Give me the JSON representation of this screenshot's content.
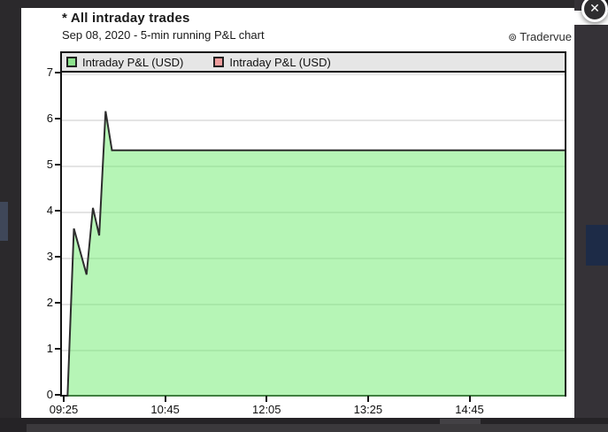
{
  "window": {
    "close_label": "✕"
  },
  "header": {
    "title": "* All intraday trades",
    "subtitle": "Sep 08, 2020 - 5-min running P&L chart",
    "brand_icon": "⊚",
    "brand": "Tradervue"
  },
  "chart_data": {
    "type": "area",
    "title": "* All intraday trades",
    "subtitle": "Sep 08, 2020 - 5-min running P&L chart",
    "legend_position": "top",
    "grid": true,
    "grid_color": "#c8c8c8",
    "xlim": [
      "09:25",
      "16:00"
    ],
    "ylim": [
      0,
      7
    ],
    "xticks": [
      "09:25",
      "10:45",
      "12:05",
      "13:25",
      "14:45"
    ],
    "yticks": [
      0,
      1,
      2,
      3,
      4,
      5,
      6,
      7
    ],
    "series": [
      {
        "name": "Intraday P&L (USD)",
        "color": "#8de38d",
        "fill": "rgba(110,235,110,0.5)",
        "line": "#2d2d2d",
        "points": [
          [
            "09:28",
            0
          ],
          [
            "09:33",
            3.65
          ],
          [
            "09:43",
            2.65
          ],
          [
            "09:48",
            4.1
          ],
          [
            "09:53",
            3.5
          ],
          [
            "09:58",
            6.2
          ],
          [
            "10:03",
            5.35
          ],
          [
            "16:00",
            5.35
          ]
        ]
      },
      {
        "name": "Intraday P&L (USD)",
        "color": "#ee9d9d",
        "points": []
      }
    ]
  }
}
